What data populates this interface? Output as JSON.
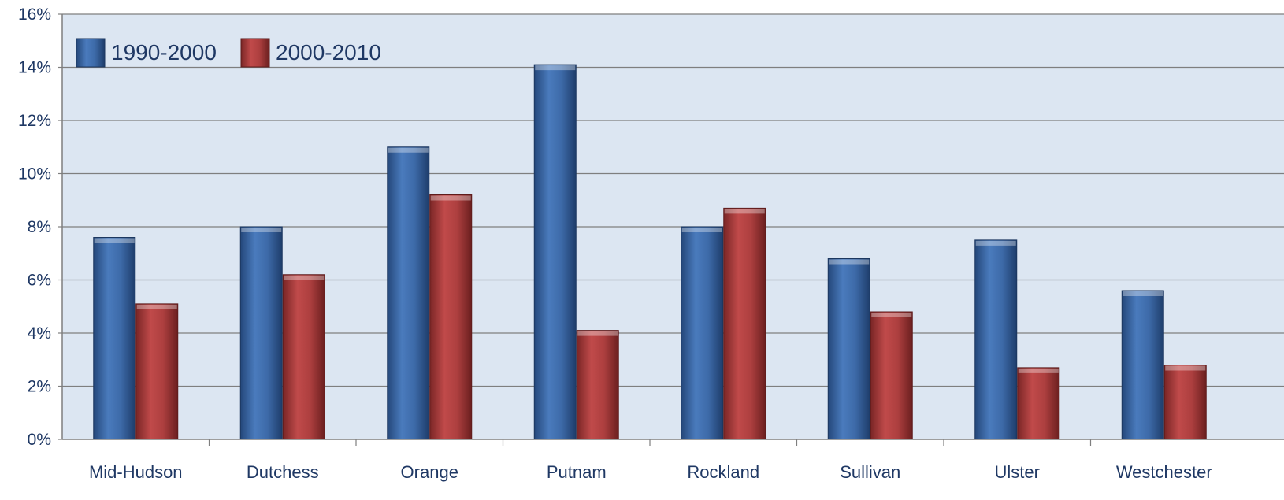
{
  "chart_data": {
    "type": "bar",
    "categories": [
      "Mid-Hudson",
      "Dutchess",
      "Orange",
      "Putnam",
      "Rockland",
      "Sullivan",
      "Ulster",
      "Westchester"
    ],
    "series": [
      {
        "name": "1990-2000",
        "values": [
          7.6,
          8.0,
          11.0,
          14.1,
          8.0,
          6.8,
          7.5,
          5.6
        ],
        "color": "#3a67a3"
      },
      {
        "name": "2000-2010",
        "values": [
          5.1,
          6.2,
          9.2,
          4.1,
          8.7,
          4.8,
          2.7,
          2.8
        ],
        "color": "#a83c3c"
      }
    ],
    "ylim": [
      0,
      16
    ],
    "yticks": [
      "0%",
      "2%",
      "4%",
      "6%",
      "8%",
      "10%",
      "12%",
      "14%",
      "16%"
    ],
    "grid": true,
    "legend": "top-left",
    "plot_background": "#dce6f2",
    "grid_color": "#7f7f7f"
  }
}
